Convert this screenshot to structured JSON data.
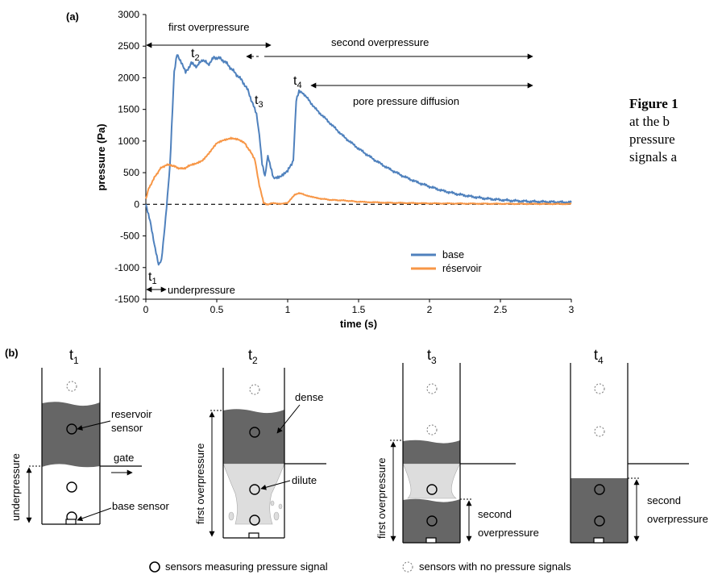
{
  "panel_a": {
    "label": "(a)",
    "chart_data": {
      "type": "line",
      "xlabel": "time (s)",
      "ylabel": "pressure (Pa)",
      "xlim": [
        0,
        3
      ],
      "ylim": [
        -1500,
        3000
      ],
      "xticks": [
        0,
        0.5,
        1,
        1.5,
        2,
        2.5,
        3
      ],
      "xtick_labels": [
        "0",
        "0.5",
        "1",
        "1.5",
        "2",
        "2.5",
        "3"
      ],
      "yticks": [
        -1500,
        -1000,
        -500,
        0,
        500,
        1000,
        1500,
        2000,
        2500,
        3000
      ],
      "ytick_labels": [
        "-1500",
        "-1000",
        "-500",
        "0",
        "500",
        "1000",
        "1500",
        "2000",
        "2500",
        "3000"
      ],
      "grid": false,
      "legend_position": "lower-right",
      "series": [
        {
          "name": "base",
          "color": "#4f81bd",
          "points": [
            [
              0,
              0
            ],
            [
              0.03,
              -250
            ],
            [
              0.06,
              -650
            ],
            [
              0.09,
              -950
            ],
            [
              0.11,
              -880
            ],
            [
              0.14,
              -200
            ],
            [
              0.17,
              600
            ],
            [
              0.2,
              2100
            ],
            [
              0.22,
              2380
            ],
            [
              0.25,
              2250
            ],
            [
              0.28,
              2080
            ],
            [
              0.32,
              2230
            ],
            [
              0.36,
              2180
            ],
            [
              0.4,
              2290
            ],
            [
              0.44,
              2210
            ],
            [
              0.48,
              2320
            ],
            [
              0.52,
              2310
            ],
            [
              0.56,
              2250
            ],
            [
              0.6,
              2150
            ],
            [
              0.64,
              2050
            ],
            [
              0.68,
              1950
            ],
            [
              0.72,
              1800
            ],
            [
              0.76,
              1550
            ],
            [
              0.78,
              1420
            ],
            [
              0.8,
              1100
            ],
            [
              0.82,
              650
            ],
            [
              0.84,
              450
            ],
            [
              0.86,
              780
            ],
            [
              0.88,
              600
            ],
            [
              0.9,
              420
            ],
            [
              0.95,
              450
            ],
            [
              1.0,
              520
            ],
            [
              1.04,
              700
            ],
            [
              1.06,
              1650
            ],
            [
              1.08,
              1800
            ],
            [
              1.1,
              1780
            ],
            [
              1.13,
              1700
            ],
            [
              1.2,
              1500
            ],
            [
              1.3,
              1280
            ],
            [
              1.4,
              1060
            ],
            [
              1.5,
              880
            ],
            [
              1.6,
              720
            ],
            [
              1.7,
              580
            ],
            [
              1.8,
              460
            ],
            [
              1.9,
              360
            ],
            [
              2.0,
              280
            ],
            [
              2.1,
              210
            ],
            [
              2.2,
              160
            ],
            [
              2.3,
              120
            ],
            [
              2.4,
              90
            ],
            [
              2.5,
              70
            ],
            [
              2.6,
              55
            ],
            [
              2.7,
              45
            ],
            [
              2.8,
              40
            ],
            [
              2.9,
              35
            ],
            [
              3.0,
              30
            ]
          ]
        },
        {
          "name": "réservoir",
          "color": "#f79646",
          "points": [
            [
              0,
              80
            ],
            [
              0.02,
              250
            ],
            [
              0.06,
              420
            ],
            [
              0.1,
              560
            ],
            [
              0.14,
              620
            ],
            [
              0.18,
              620
            ],
            [
              0.22,
              580
            ],
            [
              0.26,
              560
            ],
            [
              0.3,
              600
            ],
            [
              0.35,
              640
            ],
            [
              0.4,
              700
            ],
            [
              0.45,
              820
            ],
            [
              0.5,
              960
            ],
            [
              0.55,
              1020
            ],
            [
              0.6,
              1050
            ],
            [
              0.65,
              1020
            ],
            [
              0.7,
              960
            ],
            [
              0.74,
              820
            ],
            [
              0.77,
              700
            ],
            [
              0.8,
              300
            ],
            [
              0.83,
              20
            ],
            [
              0.86,
              0
            ],
            [
              0.9,
              20
            ],
            [
              0.95,
              10
            ],
            [
              1.0,
              20
            ],
            [
              1.05,
              150
            ],
            [
              1.08,
              180
            ],
            [
              1.12,
              150
            ],
            [
              1.2,
              100
            ],
            [
              1.3,
              70
            ],
            [
              1.4,
              60
            ],
            [
              1.5,
              40
            ],
            [
              1.7,
              25
            ],
            [
              2.0,
              15
            ],
            [
              2.5,
              8
            ],
            [
              3.0,
              5
            ]
          ]
        }
      ],
      "zero_line": "dashed"
    },
    "annotations": {
      "first_overpressure": "first overpressure",
      "second_overpressure": "second overpressure",
      "pore_pressure_diffusion": "pore pressure diffusion",
      "underpressure": "underpressure",
      "t1": "t",
      "t1_sub": "1",
      "t2": "t",
      "t2_sub": "2",
      "t3": "t",
      "t3_sub": "3",
      "t4": "t",
      "t4_sub": "4"
    }
  },
  "panel_b": {
    "label": "(b)",
    "columns": [
      {
        "t": "t",
        "sub": "1"
      },
      {
        "t": "t",
        "sub": "2"
      },
      {
        "t": "t",
        "sub": "3"
      },
      {
        "t": "t",
        "sub": "4"
      }
    ],
    "labels": {
      "reservoir_sensor_1": "reservoir",
      "reservoir_sensor_2": "sensor",
      "gate": "gate",
      "base_sensor": "base sensor",
      "underpressure": "underpressure",
      "dense": "dense",
      "dilute": "dilute",
      "first_overpressure_2": "first overpressure",
      "first_overpressure_3": "first overpressure",
      "second_3a": "second",
      "second_3b": "overpressure",
      "second_4a": "second",
      "second_4b": "overpressure"
    },
    "legend": {
      "solid": "sensors measuring pressure signal",
      "dashed": "sensors with no pressure signals"
    },
    "colors": {
      "dense": "#666666",
      "dilute": "#dddddd"
    }
  },
  "caption": {
    "bold": "Figure",
    "line1": "at the b",
    "line2": "pressure",
    "line3": "signals a"
  }
}
